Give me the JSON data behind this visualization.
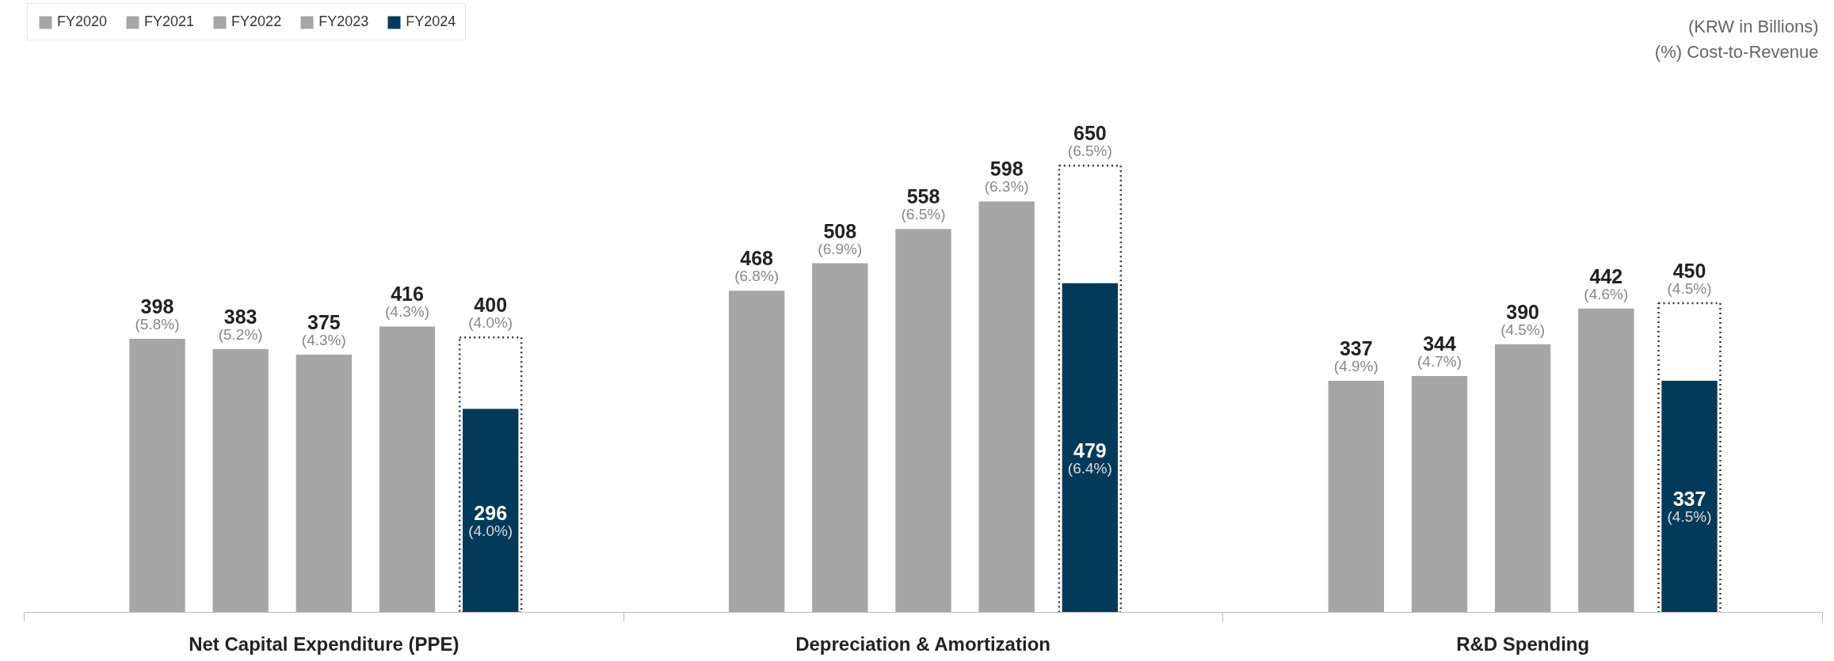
{
  "chart_data": {
    "type": "bar",
    "categories": [
      "Net Capital Expenditure (PPE)",
      "Depreciation & Amortization",
      "R&D Spending"
    ],
    "series": [
      {
        "name": "FY2020",
        "color": "#a6a6a6",
        "values": [
          398,
          468,
          337
        ],
        "value_labels": [
          "398\n(5.8%)",
          "468\n(6.8%)",
          "337\n(4.9%)"
        ]
      },
      {
        "name": "FY2021",
        "color": "#a6a6a6",
        "values": [
          383,
          508,
          344
        ],
        "value_labels": [
          "383\n(5.2%)",
          "508\n(6.9%)",
          "344\n(4.7%)"
        ]
      },
      {
        "name": "FY2022",
        "color": "#a6a6a6",
        "values": [
          375,
          558,
          390
        ],
        "value_labels": [
          "375\n(4.3%)",
          "558\n(6.5%)",
          "390\n(4.5%)"
        ]
      },
      {
        "name": "FY2023",
        "color": "#a6a6a6",
        "values": [
          416,
          598,
          442
        ],
        "value_labels": [
          "416\n(4.3%)",
          "598\n(6.3%)",
          "442\n(4.6%)"
        ]
      },
      {
        "name": "FY2024",
        "color": "#033a5a",
        "values": [
          296,
          479,
          337
        ],
        "value_labels": [
          "296\n(4.0%)",
          "479\n(6.4%)",
          "337\n(4.5%)"
        ]
      },
      {
        "color": "#333333",
        "line_style": "dotted",
        "values": [
          400,
          650,
          450
        ],
        "value_labels": [
          "400\n(4.0%)",
          "650\n(6.5%)",
          "450\n(4.5%)"
        ]
      }
    ],
    "annotations": [
      "(KRW in Billions)",
      "(%) Cost-to-Revenue"
    ],
    "legend": "top left"
  }
}
